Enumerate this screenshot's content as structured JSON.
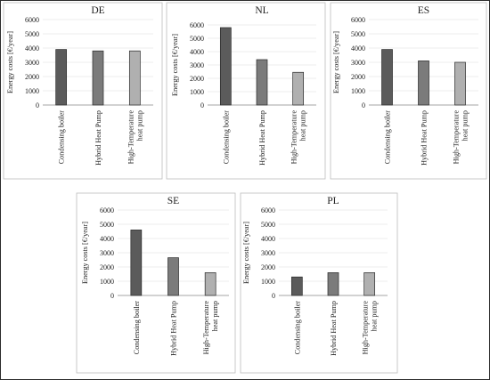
{
  "chart_data": [
    {
      "type": "bar",
      "title": "DE",
      "ylabel": "Energy costs [€/year]",
      "ylim": [
        0,
        6000
      ],
      "yticks": [
        0,
        1000,
        2000,
        3000,
        4000,
        5000,
        6000
      ],
      "categories": [
        [
          "Condensing boiler"
        ],
        [
          "Hybrid Heat Pump"
        ],
        [
          "High-Temperature",
          "heat pump"
        ]
      ],
      "values": [
        3900,
        3800,
        3800
      ],
      "colors": [
        "#5b5b5b",
        "#7b7b7b",
        "#b0b0b0"
      ],
      "grid": true
    },
    {
      "type": "bar",
      "title": "NL",
      "ylabel": "Energy costs [€/year]",
      "ylim": [
        0,
        6000
      ],
      "yticks": [
        0,
        1000,
        2000,
        3000,
        4000,
        5000,
        6000
      ],
      "categories": [
        [
          "Condensing boiler"
        ],
        [
          "Hybrid Heat Pump"
        ],
        [
          "High-Temperature",
          "heat pump"
        ]
      ],
      "values": [
        5800,
        3400,
        2450
      ],
      "colors": [
        "#5b5b5b",
        "#7b7b7b",
        "#b0b0b0"
      ],
      "grid": true
    },
    {
      "type": "bar",
      "title": "ES",
      "ylabel": "Energy costs [€/year]",
      "ylim": [
        0,
        6000
      ],
      "yticks": [
        0,
        1000,
        2000,
        3000,
        4000,
        5000,
        6000
      ],
      "categories": [
        [
          "Condensing boiler"
        ],
        [
          "Hybrid Heat Pump"
        ],
        [
          "High-Temperature",
          "heat pump"
        ]
      ],
      "values": [
        3900,
        3100,
        3000
      ],
      "colors": [
        "#5b5b5b",
        "#7b7b7b",
        "#b0b0b0"
      ],
      "grid": true
    },
    {
      "type": "bar",
      "title": "SE",
      "ylabel": "Energy costs [€/year]",
      "ylim": [
        0,
        6000
      ],
      "yticks": [
        0,
        1000,
        2000,
        3000,
        4000,
        5000,
        6000
      ],
      "categories": [
        [
          "Condensing boiler"
        ],
        [
          "Hybrid Heat Pump"
        ],
        [
          "High-Temperature",
          "heat pump"
        ]
      ],
      "values": [
        4600,
        2650,
        1600
      ],
      "colors": [
        "#5b5b5b",
        "#7b7b7b",
        "#b0b0b0"
      ],
      "grid": true
    },
    {
      "type": "bar",
      "title": "PL",
      "ylabel": "Energy costs [€/year]",
      "ylim": [
        0,
        6000
      ],
      "yticks": [
        0,
        1000,
        2000,
        3000,
        4000,
        5000,
        6000
      ],
      "categories": [
        [
          "Condensing boiler"
        ],
        [
          "Hybrid Heat Pump"
        ],
        [
          "High-Temperature",
          "heat pump"
        ]
      ],
      "values": [
        1300,
        1600,
        1600
      ],
      "colors": [
        "#5b5b5b",
        "#7b7b7b",
        "#b0b0b0"
      ],
      "grid": true
    }
  ]
}
